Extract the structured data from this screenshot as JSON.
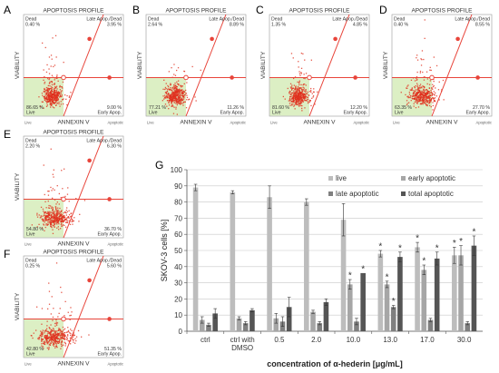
{
  "chart_data": [
    {
      "panel": "A",
      "type": "scatter",
      "title": "APOPTOSIS PROFILE",
      "xlabel": "ANNEXIN V",
      "ylabel": "VIABILITY",
      "corner_x_note": "Apoptotic",
      "corner_live_note": "Live",
      "quadrants": {
        "dead": {
          "label": "Dead",
          "value": "0.40 %"
        },
        "late": {
          "label": "Late Apop./Dead",
          "value": "3.95 %"
        },
        "live": {
          "label": "Live",
          "value": "86.65 %"
        },
        "early": {
          "label": "Early Apop.",
          "value": "9.00 %"
        }
      },
      "spread": 0.55
    },
    {
      "panel": "B",
      "type": "scatter",
      "title": "APOPTOSIS PROFILE",
      "xlabel": "ANNEXIN V",
      "ylabel": "VIABILITY",
      "corner_x_note": "Apoptotic",
      "corner_live_note": "Live",
      "quadrants": {
        "dead": {
          "label": "Dead",
          "value": "2.64 %"
        },
        "late": {
          "label": "Late Apop./Dead",
          "value": "8.89 %"
        },
        "live": {
          "label": "Live",
          "value": "77.21 %"
        },
        "early": {
          "label": "Early Apop.",
          "value": "11.26 %"
        }
      },
      "spread": 0.65
    },
    {
      "panel": "C",
      "type": "scatter",
      "title": "APOPTOSIS PROFILE",
      "xlabel": "ANNEXIN V",
      "ylabel": "VIABILITY",
      "corner_x_note": "Apoptotic",
      "corner_live_note": "Live",
      "quadrants": {
        "dead": {
          "label": "Dead",
          "value": "1.35 %"
        },
        "late": {
          "label": "Late Apop./Dead",
          "value": "4.85 %"
        },
        "live": {
          "label": "Live",
          "value": "81.60 %"
        },
        "early": {
          "label": "Early Apop.",
          "value": "12.20 %"
        }
      },
      "spread": 0.6
    },
    {
      "panel": "D",
      "type": "scatter",
      "title": "APOPTOSIS PROFILE",
      "xlabel": "ANNEXIN V",
      "ylabel": "VIABILITY",
      "corner_x_note": "Apoptotic",
      "corner_live_note": "Live",
      "quadrants": {
        "dead": {
          "label": "Dead",
          "value": "0.40 %"
        },
        "late": {
          "label": "Late Apop./Dead",
          "value": "8.55 %"
        },
        "live": {
          "label": "Live",
          "value": "63.35 %"
        },
        "early": {
          "label": "Early Apop.",
          "value": "27.70 %"
        }
      },
      "spread": 0.8
    },
    {
      "panel": "E",
      "type": "scatter",
      "title": "APOPTOSIS PROFILE",
      "xlabel": "ANNEXIN V",
      "ylabel": "VIABILITY",
      "corner_x_note": "Apoptotic",
      "corner_live_note": "Live",
      "quadrants": {
        "dead": {
          "label": "Dead",
          "value": "2.20 %"
        },
        "late": {
          "label": "Late Apop./Dead",
          "value": "6.30 %"
        },
        "live": {
          "label": "Live",
          "value": "54.80 %"
        },
        "early": {
          "label": "Early Apop.",
          "value": "36.70 %"
        }
      },
      "spread": 0.95
    },
    {
      "panel": "F",
      "type": "scatter",
      "title": "APOPTOSIS PROFILE",
      "xlabel": "ANNEXIN V",
      "ylabel": "VIABILITY",
      "corner_x_note": "Apoptotic",
      "corner_live_note": "Live",
      "quadrants": {
        "dead": {
          "label": "Dead",
          "value": "0.25 %"
        },
        "late": {
          "label": "Late Apop./Dead",
          "value": "5.60 %"
        },
        "live": {
          "label": "Live",
          "value": "42.80 %"
        },
        "early": {
          "label": "Early Apop.",
          "value": "51.35 %"
        }
      },
      "spread": 1.05
    },
    {
      "panel": "G",
      "type": "bar",
      "ylabel": "SKOV-3 cells [%]",
      "xlabel": "concentration of α-hederin [μg/mL]",
      "ylim": [
        0,
        100
      ],
      "yticks": [
        0,
        10,
        20,
        30,
        40,
        50,
        60,
        70,
        80,
        90,
        100
      ],
      "categories": [
        "ctrl",
        "ctrl with\nDMSO",
        "0.5",
        "2.0",
        "10.0",
        "13.0",
        "17.0",
        "30.0"
      ],
      "series": [
        {
          "name": "live",
          "color": "#bdbdbd",
          "values": [
            89,
            86,
            83,
            80,
            69,
            48,
            52,
            47
          ],
          "err": [
            2,
            1,
            7,
            2,
            10,
            2,
            3,
            5
          ],
          "sig": [
            false,
            false,
            false,
            false,
            false,
            true,
            true,
            true
          ]
        },
        {
          "name": "early apoptotic",
          "color": "#a6a6a6",
          "values": [
            7,
            8,
            8,
            12,
            29,
            29,
            38,
            47
          ],
          "err": [
            2,
            1,
            3,
            1,
            3,
            2,
            3,
            6
          ],
          "sig": [
            false,
            false,
            false,
            false,
            true,
            true,
            true,
            true
          ]
        },
        {
          "name": "late apoptotic",
          "color": "#808080",
          "values": [
            4,
            5,
            6,
            5,
            6,
            15,
            7,
            5
          ],
          "err": [
            1,
            1,
            3,
            1,
            2,
            1,
            1,
            1
          ],
          "sig": [
            false,
            false,
            false,
            false,
            false,
            true,
            false,
            false
          ]
        },
        {
          "name": "total apoptotic",
          "color": "#555555",
          "values": [
            11,
            13,
            15,
            18,
            36,
            46,
            45,
            53
          ],
          "err": [
            3,
            1,
            6,
            2,
            0,
            3,
            4,
            6
          ],
          "sig": [
            false,
            false,
            false,
            false,
            true,
            true,
            true,
            true
          ]
        }
      ],
      "legend_placement": "top-right"
    }
  ]
}
